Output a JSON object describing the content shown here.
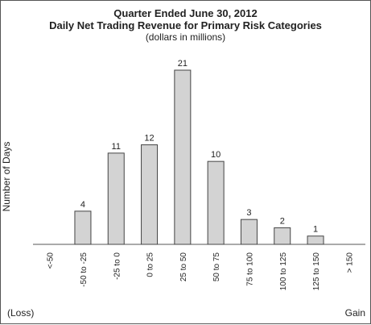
{
  "chart_data": {
    "type": "bar",
    "title": "Quarter Ended June 30, 2012",
    "subtitle": "Daily Net Trading Revenue for Primary Risk Categories",
    "units": "(dollars in millions)",
    "ylabel": "Number of Days",
    "categories": [
      "<-50",
      "-50 to -25",
      "-25 to 0",
      "0 to 25",
      "25 to 50",
      "50 to 75",
      "75 to 100",
      "100 to 125",
      "125 to 150",
      "> 150"
    ],
    "values": [
      0,
      4,
      11,
      12,
      21,
      10,
      3,
      2,
      1,
      0
    ],
    "data_labels": [
      "",
      "4",
      "11",
      "12",
      "21",
      "10",
      "3",
      "2",
      "1",
      ""
    ],
    "ylim": [
      0,
      21
    ],
    "grid": false,
    "legend": "none",
    "bar_color": "#d3d3d3",
    "left_note": "(Loss)",
    "right_note": "Gain"
  }
}
